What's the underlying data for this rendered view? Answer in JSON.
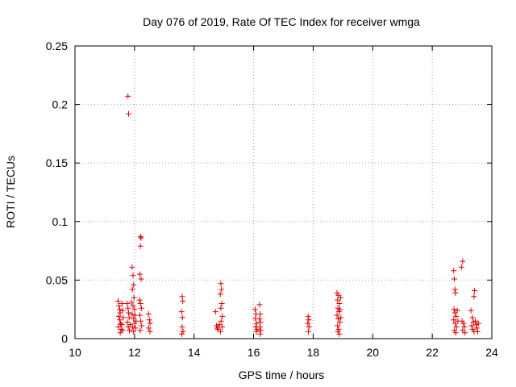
{
  "chart_data": {
    "type": "scatter",
    "title": "Day 076 of 2019, Rate Of TEC Index for receiver wmga",
    "xlabel": "GPS time / hours",
    "ylabel": "ROTI / TECUs",
    "xlim": [
      10,
      24
    ],
    "ylim": [
      0,
      0.25
    ],
    "x_ticks": [
      10,
      12,
      14,
      16,
      18,
      20,
      22,
      24
    ],
    "x_tick_labels": [
      "10",
      "12",
      "14",
      "16",
      "18",
      "20",
      "22",
      "24"
    ],
    "y_ticks": [
      0,
      0.05,
      0.1,
      0.15,
      0.2,
      0.25
    ],
    "y_tick_labels": [
      "0",
      "0.05",
      "0.1",
      "0.15",
      "0.2",
      "0.25"
    ],
    "grid": true,
    "marker": "+",
    "color": "#dd0000",
    "series": [
      {
        "name": "ROTI",
        "points": [
          [
            11.45,
            0.032
          ],
          [
            11.48,
            0.028
          ],
          [
            11.5,
            0.025
          ],
          [
            11.52,
            0.022
          ],
          [
            11.47,
            0.019
          ],
          [
            11.5,
            0.016
          ],
          [
            11.53,
            0.013
          ],
          [
            11.46,
            0.01
          ],
          [
            11.55,
            0.008
          ],
          [
            11.58,
            0.03
          ],
          [
            11.6,
            0.024
          ],
          [
            11.62,
            0.018
          ],
          [
            11.57,
            0.012
          ],
          [
            11.6,
            0.007
          ],
          [
            11.52,
            0.005
          ],
          [
            11.78,
            0.207
          ],
          [
            11.8,
            0.192
          ],
          [
            11.75,
            0.03
          ],
          [
            11.78,
            0.026
          ],
          [
            11.8,
            0.022
          ],
          [
            11.82,
            0.018
          ],
          [
            11.76,
            0.014
          ],
          [
            11.79,
            0.01
          ],
          [
            11.83,
            0.007
          ],
          [
            11.85,
            0.012
          ],
          [
            11.92,
            0.061
          ],
          [
            11.95,
            0.054
          ],
          [
            11.97,
            0.046
          ],
          [
            11.93,
            0.042
          ],
          [
            11.98,
            0.035
          ],
          [
            11.9,
            0.031
          ],
          [
            11.95,
            0.028
          ],
          [
            12.0,
            0.025
          ],
          [
            11.92,
            0.021
          ],
          [
            11.97,
            0.017
          ],
          [
            12.0,
            0.013
          ],
          [
            11.93,
            0.01
          ],
          [
            11.96,
            0.006
          ],
          [
            12.02,
            0.02
          ],
          [
            12.05,
            0.015
          ],
          [
            12.03,
            0.009
          ],
          [
            12.2,
            0.087
          ],
          [
            12.22,
            0.086
          ],
          [
            12.2,
            0.079
          ],
          [
            12.18,
            0.055
          ],
          [
            12.22,
            0.051
          ],
          [
            12.17,
            0.033
          ],
          [
            12.2,
            0.03
          ],
          [
            12.23,
            0.026
          ],
          [
            12.18,
            0.02
          ],
          [
            12.21,
            0.015
          ],
          [
            12.24,
            0.011
          ],
          [
            12.19,
            0.007
          ],
          [
            12.47,
            0.021
          ],
          [
            12.5,
            0.016
          ],
          [
            12.52,
            0.013
          ],
          [
            12.48,
            0.009
          ],
          [
            12.52,
            0.006
          ],
          [
            13.6,
            0.036
          ],
          [
            13.62,
            0.032
          ],
          [
            13.58,
            0.023
          ],
          [
            13.61,
            0.018
          ],
          [
            13.6,
            0.01
          ],
          [
            13.63,
            0.006
          ],
          [
            13.59,
            0.004
          ],
          [
            14.72,
            0.023
          ],
          [
            14.75,
            0.011
          ],
          [
            14.78,
            0.009
          ],
          [
            14.8,
            0.008
          ],
          [
            14.85,
            0.012
          ],
          [
            14.9,
            0.047
          ],
          [
            14.92,
            0.042
          ],
          [
            14.88,
            0.038
          ],
          [
            14.93,
            0.03
          ],
          [
            14.9,
            0.026
          ],
          [
            14.95,
            0.019
          ],
          [
            14.91,
            0.015
          ],
          [
            14.94,
            0.01
          ],
          [
            14.89,
            0.006
          ],
          [
            16.05,
            0.025
          ],
          [
            16.08,
            0.021
          ],
          [
            16.06,
            0.017
          ],
          [
            16.1,
            0.013
          ],
          [
            16.07,
            0.01
          ],
          [
            16.12,
            0.008
          ],
          [
            16.09,
            0.006
          ],
          [
            16.2,
            0.029
          ],
          [
            16.22,
            0.021
          ],
          [
            16.2,
            0.017
          ],
          [
            16.23,
            0.014
          ],
          [
            16.21,
            0.01
          ],
          [
            16.24,
            0.007
          ],
          [
            16.22,
            0.004
          ],
          [
            17.83,
            0.019
          ],
          [
            17.85,
            0.016
          ],
          [
            17.82,
            0.013
          ],
          [
            17.86,
            0.01
          ],
          [
            17.84,
            0.006
          ],
          [
            18.8,
            0.039
          ],
          [
            18.85,
            0.037
          ],
          [
            18.82,
            0.033
          ],
          [
            18.88,
            0.03
          ],
          [
            18.83,
            0.026
          ],
          [
            18.87,
            0.023
          ],
          [
            18.8,
            0.02
          ],
          [
            18.84,
            0.017
          ],
          [
            18.9,
            0.014
          ],
          [
            18.82,
            0.011
          ],
          [
            18.86,
            0.008
          ],
          [
            18.83,
            0.006
          ],
          [
            18.88,
            0.004
          ],
          [
            18.92,
            0.035
          ],
          [
            18.9,
            0.025
          ],
          [
            18.93,
            0.018
          ],
          [
            22.72,
            0.058
          ],
          [
            22.74,
            0.051
          ],
          [
            22.76,
            0.042
          ],
          [
            22.78,
            0.039
          ],
          [
            22.73,
            0.025
          ],
          [
            22.76,
            0.022
          ],
          [
            22.8,
            0.019
          ],
          [
            22.72,
            0.016
          ],
          [
            22.77,
            0.013
          ],
          [
            22.81,
            0.01
          ],
          [
            22.74,
            0.007
          ],
          [
            22.79,
            0.005
          ],
          [
            22.84,
            0.024
          ],
          [
            22.86,
            0.015
          ],
          [
            23.02,
            0.066
          ],
          [
            22.98,
            0.061
          ],
          [
            23.05,
            0.013
          ],
          [
            23.08,
            0.01
          ],
          [
            23.02,
            0.007
          ],
          [
            23.1,
            0.005
          ],
          [
            23.0,
            0.015
          ],
          [
            23.3,
            0.024
          ],
          [
            23.35,
            0.018
          ],
          [
            23.38,
            0.014
          ],
          [
            23.32,
            0.011
          ],
          [
            23.36,
            0.008
          ],
          [
            23.4,
            0.006
          ],
          [
            23.42,
            0.041
          ],
          [
            23.4,
            0.036
          ],
          [
            23.45,
            0.015
          ],
          [
            23.48,
            0.012
          ],
          [
            23.5,
            0.009
          ],
          [
            23.52,
            0.006
          ],
          [
            23.55,
            0.013
          ]
        ]
      }
    ]
  }
}
